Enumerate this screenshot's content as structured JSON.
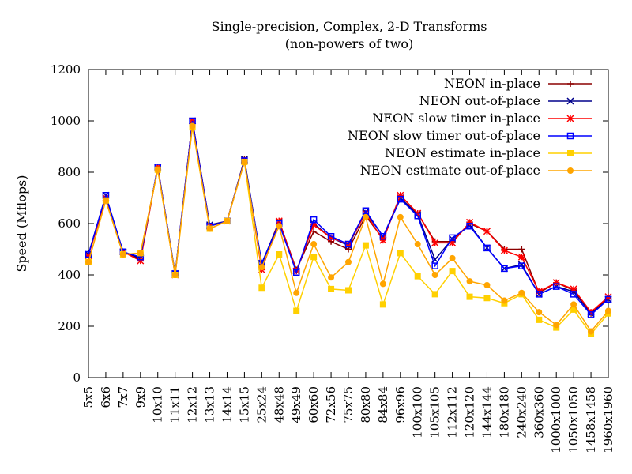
{
  "chart_data": {
    "type": "line",
    "title": "Single-precision, Complex, 2-D Transforms",
    "subtitle": "(non-powers of two)",
    "xlabel": "",
    "ylabel": "Speed (Mflops)",
    "ylim": [
      0,
      1200
    ],
    "yticks": [
      0,
      200,
      400,
      600,
      800,
      1000,
      1200
    ],
    "grid": false,
    "legend_position": "top-right",
    "categories": [
      "5x5",
      "6x6",
      "7x7",
      "9x9",
      "10x10",
      "11x11",
      "12x12",
      "13x13",
      "14x14",
      "15x15",
      "25x24",
      "48x48",
      "49x49",
      "60x60",
      "72x56",
      "75x75",
      "80x80",
      "84x84",
      "96x96",
      "100x100",
      "105x105",
      "112x112",
      "120x120",
      "144x144",
      "180x180",
      "240x240",
      "360x360",
      "1000x1000",
      "1050x1050",
      "1458x1458",
      "1960x1960"
    ],
    "series": [
      {
        "name": "NEON in-place",
        "color": "#8b0000",
        "marker": "plus",
        "values": [
          480,
          700,
          490,
          460,
          820,
          400,
          1000,
          590,
          610,
          850,
          440,
          610,
          420,
          570,
          530,
          500,
          630,
          540,
          710,
          640,
          530,
          530,
          600,
          570,
          500,
          500,
          330,
          370,
          340,
          250,
          310
        ]
      },
      {
        "name": "NEON out-of-place",
        "color": "#00008b",
        "marker": "cross",
        "values": [
          480,
          710,
          490,
          465,
          820,
          405,
          1000,
          595,
          610,
          850,
          445,
          605,
          415,
          600,
          545,
          515,
          645,
          550,
          700,
          635,
          460,
          540,
          595,
          505,
          425,
          440,
          325,
          355,
          335,
          250,
          305
        ]
      },
      {
        "name": "NEON slow timer in-place",
        "color": "#ff0000",
        "marker": "star-x",
        "values": [
          475,
          700,
          490,
          455,
          820,
          400,
          1000,
          590,
          610,
          845,
          420,
          610,
          415,
          595,
          545,
          520,
          640,
          535,
          710,
          640,
          525,
          525,
          605,
          570,
          495,
          470,
          335,
          370,
          345,
          255,
          315
        ]
      },
      {
        "name": "NEON slow timer out-of-place",
        "color": "#0000ff",
        "marker": "box",
        "values": [
          480,
          710,
          490,
          470,
          820,
          405,
          1000,
          590,
          610,
          845,
          445,
          600,
          410,
          615,
          550,
          520,
          650,
          550,
          695,
          630,
          435,
          545,
          590,
          505,
          425,
          435,
          325,
          355,
          325,
          245,
          305
        ]
      },
      {
        "name": "NEON estimate in-place",
        "color": "#ffd000",
        "marker": "filled-box",
        "values": [
          450,
          690,
          480,
          485,
          810,
          400,
          975,
          580,
          610,
          840,
          350,
          480,
          260,
          470,
          345,
          340,
          515,
          285,
          485,
          395,
          325,
          415,
          315,
          310,
          290,
          325,
          225,
          195,
          265,
          170,
          250
        ]
      },
      {
        "name": "NEON estimate out-of-place",
        "color": "#ffa500",
        "marker": "filled-circle",
        "values": [
          450,
          690,
          480,
          485,
          810,
          400,
          980,
          580,
          610,
          840,
          430,
          590,
          330,
          520,
          390,
          450,
          625,
          365,
          625,
          520,
          400,
          465,
          375,
          360,
          300,
          330,
          255,
          205,
          285,
          180,
          260
        ]
      }
    ]
  }
}
